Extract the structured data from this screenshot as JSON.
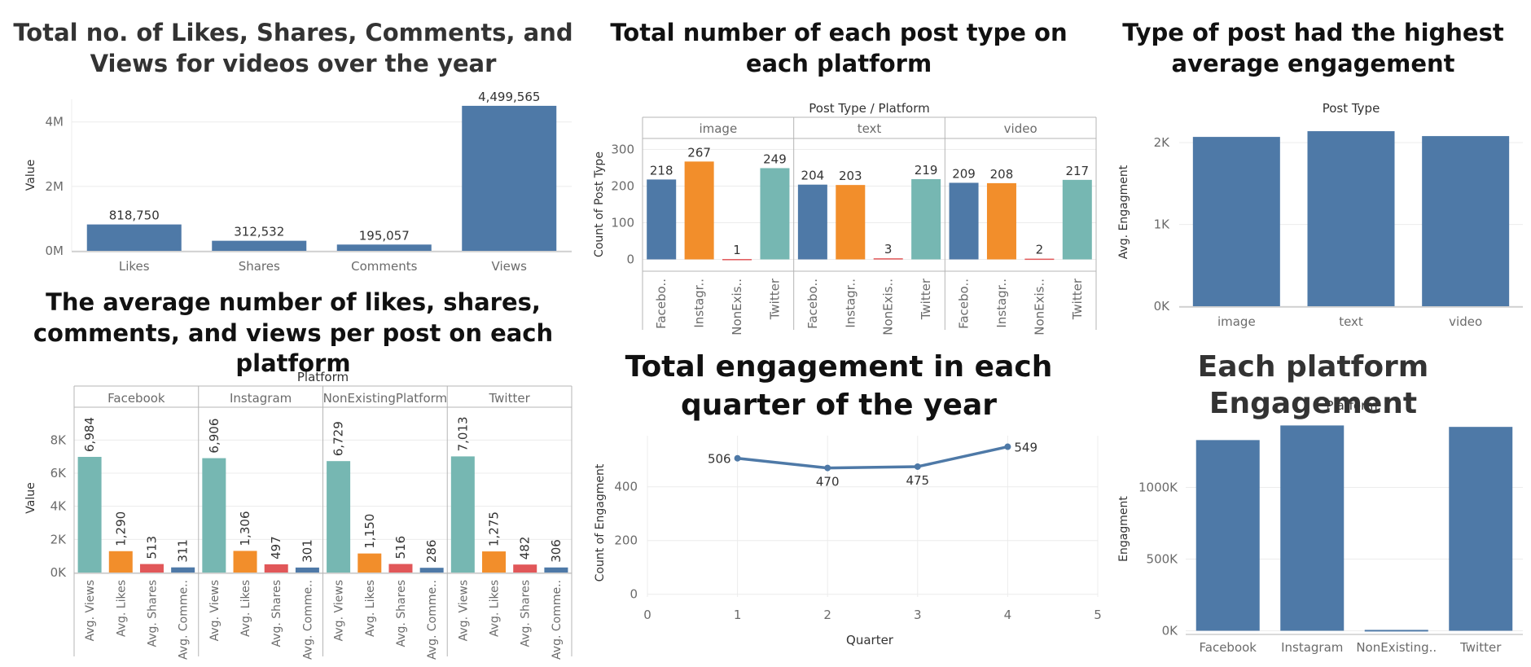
{
  "colors": {
    "blue": "#4e79a7",
    "orange": "#f28e2b",
    "red": "#e15759",
    "teal": "#76b7b2",
    "axis": "#b5b5b5",
    "grid": "#ececec",
    "text": "#333333",
    "label": "#6b6b6b"
  },
  "chart_data": [
    {
      "id": "c1",
      "type": "bar",
      "title": "Total no. of Likes, Shares, Comments, and Views for videos over the year",
      "ylabel": "Value",
      "categories": [
        "Likes",
        "Shares",
        "Comments",
        "Views"
      ],
      "values": [
        818750,
        312532,
        195057,
        4499565
      ],
      "value_labels": [
        "818,750",
        "312,532",
        "195,057",
        "4,499,565"
      ],
      "y_ticks": [
        0,
        2000000,
        4000000
      ],
      "y_tick_labels": [
        "0M",
        "2M",
        "4M"
      ],
      "ylim": [
        0,
        4700000
      ],
      "color": "#4e79a7",
      "grid": true
    },
    {
      "id": "c2",
      "type": "bar",
      "title": "Total number of each post type on each platform",
      "header": "Post Type  /  Platform",
      "ylabel": "Count of Post Type",
      "groups": [
        "image",
        "text",
        "video"
      ],
      "categories": [
        "Facebo..",
        "Instagr..",
        "NonExis..",
        "Twitter"
      ],
      "series_colors": [
        "#4e79a7",
        "#f28e2b",
        "#e15759",
        "#76b7b2"
      ],
      "values": [
        [
          218,
          267,
          1,
          249
        ],
        [
          204,
          203,
          3,
          219
        ],
        [
          209,
          208,
          2,
          217
        ]
      ],
      "y_ticks": [
        0,
        100,
        200,
        300
      ],
      "ylim": [
        -30,
        330
      ],
      "grid": true
    },
    {
      "id": "c3",
      "type": "bar",
      "title": "Type of post had the highest average engagement",
      "header": "Post Type",
      "ylabel": "Avg. Engagment",
      "categories": [
        "image",
        "text",
        "video"
      ],
      "values": [
        2070,
        2140,
        2080
      ],
      "y_ticks": [
        0,
        1000,
        2000
      ],
      "y_tick_labels": [
        "0K",
        "1K",
        "2K"
      ],
      "ylim": [
        0,
        2300
      ],
      "color": "#4e79a7",
      "grid": true
    },
    {
      "id": "c4",
      "type": "bar",
      "title": "The average number of likes, shares, comments, and views per post on each platform",
      "header": "Platform",
      "ylabel": "Value",
      "groups": [
        "Facebook",
        "Instagram",
        "NonExistingPlatform",
        "Twitter"
      ],
      "categories": [
        "Avg. Views",
        "Avg. Likes",
        "Avg. Shares",
        "Avg. Comme.."
      ],
      "series_colors": [
        "#76b7b2",
        "#f28e2b",
        "#e15759",
        "#4e79a7"
      ],
      "values": [
        [
          6984,
          1290,
          513,
          311
        ],
        [
          6906,
          1306,
          497,
          301
        ],
        [
          6729,
          1150,
          516,
          286
        ],
        [
          7013,
          1275,
          482,
          306
        ]
      ],
      "value_labels": [
        [
          "6,984",
          "1,290",
          "513",
          "311"
        ],
        [
          "6,906",
          "1,306",
          "497",
          "301"
        ],
        [
          "6,729",
          "1,150",
          "516",
          "286"
        ],
        [
          "7,013",
          "1,275",
          "482",
          "306"
        ]
      ],
      "y_ticks": [
        0,
        2000,
        4000,
        6000,
        8000
      ],
      "y_tick_labels": [
        "0K",
        "2K",
        "4K",
        "6K",
        "8K"
      ],
      "ylim": [
        0,
        9000
      ],
      "grid": true
    },
    {
      "id": "c5",
      "type": "line",
      "title": "Total engagement in each quarter of the year",
      "xlabel": "Quarter",
      "ylabel": "Count of Engagment",
      "x": [
        1,
        2,
        3,
        4
      ],
      "values": [
        506,
        470,
        475,
        549
      ],
      "x_ticks": [
        0,
        1,
        2,
        3,
        4,
        5
      ],
      "y_ticks": [
        0,
        200,
        400
      ],
      "xlim": [
        0,
        5
      ],
      "ylim": [
        -10,
        590
      ],
      "color": "#4e79a7",
      "grid": true
    },
    {
      "id": "c6",
      "type": "bar",
      "title": "Each platform Engagement",
      "header": "Platform",
      "ylabel": "Engagment",
      "categories": [
        "Facebook",
        "Instagram",
        "NonExisting..",
        "Twitter"
      ],
      "values": [
        1330000,
        1432000,
        6000,
        1422000
      ],
      "y_ticks": [
        0,
        500000,
        1000000
      ],
      "y_tick_labels": [
        "0K",
        "500K",
        "1000K"
      ],
      "ylim": [
        -20000,
        1440000
      ],
      "color": "#4e79a7",
      "grid": true
    }
  ]
}
